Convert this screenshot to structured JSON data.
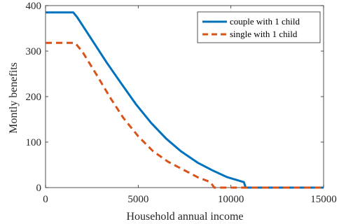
{
  "chart_data": {
    "type": "line",
    "title": "",
    "xlabel": "Household annual income",
    "ylabel": "Montly benefits",
    "xlim": [
      0,
      15000
    ],
    "ylim": [
      0,
      400
    ],
    "xticks": [
      0,
      5000,
      10000,
      15000
    ],
    "yticks": [
      0,
      100,
      200,
      300,
      400
    ],
    "xtick_labels": [
      "0",
      "5000",
      "10000",
      "15000"
    ],
    "ytick_labels": [
      "0",
      "100",
      "200",
      "300",
      "400"
    ],
    "grid": false,
    "legend_position": "top-right",
    "series": [
      {
        "name": "couple with 1 child",
        "color": "#0072BD",
        "dash": "solid",
        "x": [
          0,
          1500,
          1700,
          2500,
          3300,
          4100,
          4900,
          5700,
          6500,
          7300,
          8200,
          9000,
          9800,
          10700,
          10800,
          11000,
          15000
        ],
        "y": [
          385,
          385,
          375,
          325,
          275,
          228,
          182,
          142,
          108,
          80,
          55,
          38,
          23,
          12,
          0,
          0,
          0
        ]
      },
      {
        "name": "single with 1 child",
        "color": "#D95319",
        "dash": "dashed",
        "x": [
          0,
          1600,
          2000,
          2800,
          3500,
          4200,
          5000,
          5800,
          6600,
          7400,
          8200,
          8900,
          9100,
          9300,
          15000
        ],
        "y": [
          318,
          318,
          298,
          245,
          197,
          153,
          113,
          80,
          57,
          40,
          23,
          12,
          0,
          0,
          0
        ]
      }
    ]
  }
}
